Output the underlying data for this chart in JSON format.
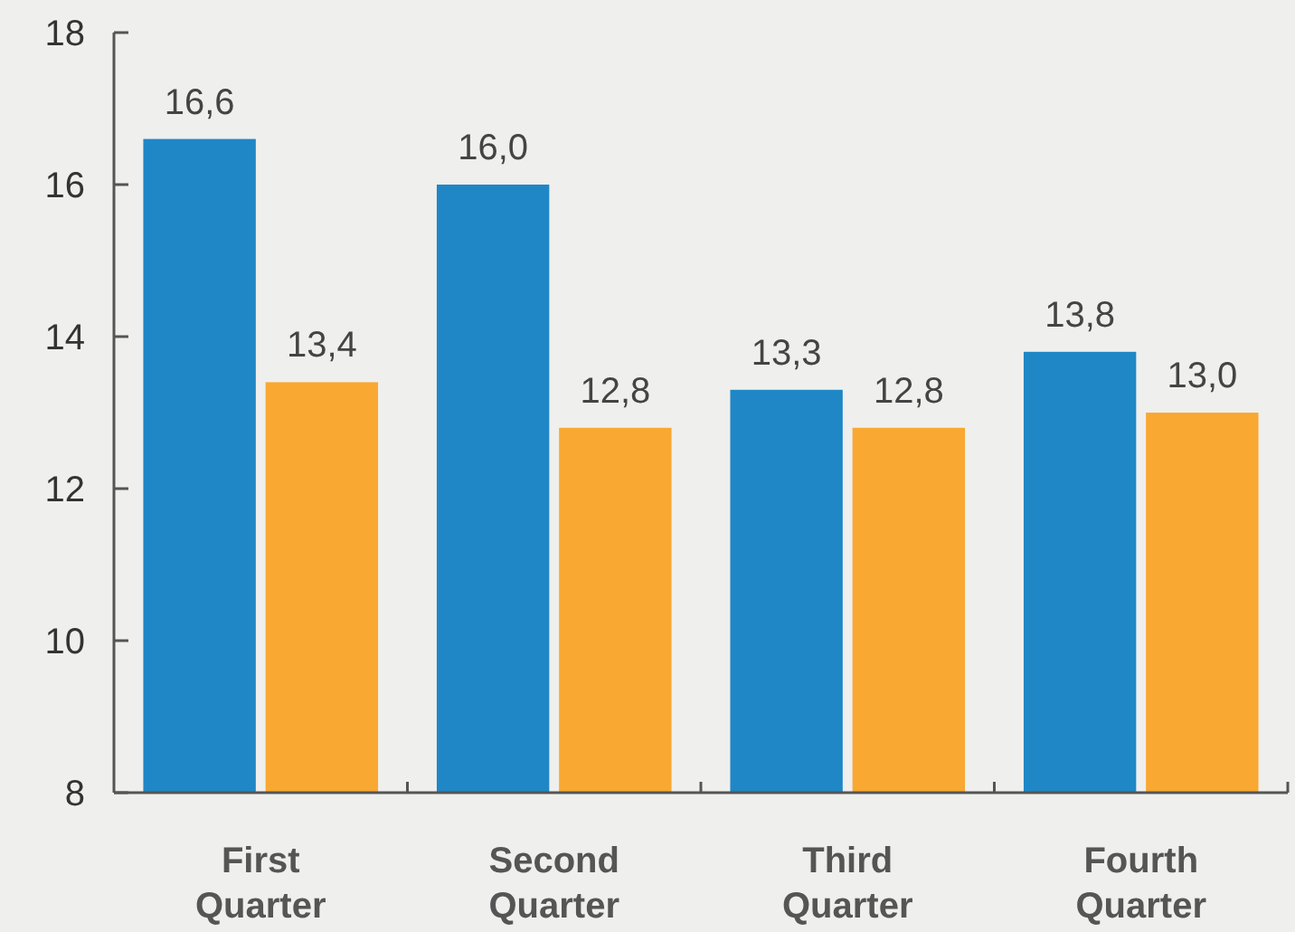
{
  "chart_data": {
    "type": "bar",
    "categories": [
      "First Quarter",
      "Second Quarter",
      "Third Quarter",
      "Fourth Quarter"
    ],
    "series": [
      {
        "color": "#1f87c6",
        "values": [
          16.6,
          16.0,
          13.3,
          13.8
        ],
        "value_labels": [
          "16,6",
          "16,0",
          "13,3",
          "13,8"
        ]
      },
      {
        "color": "#f9a832",
        "values": [
          13.4,
          12.8,
          12.8,
          13.0
        ],
        "value_labels": [
          "13,4",
          "12,8",
          "12,8",
          "13,0"
        ]
      }
    ],
    "ylim": [
      8,
      18
    ],
    "yticks": [
      8,
      10,
      12,
      14,
      16,
      18
    ],
    "grid": false
  }
}
